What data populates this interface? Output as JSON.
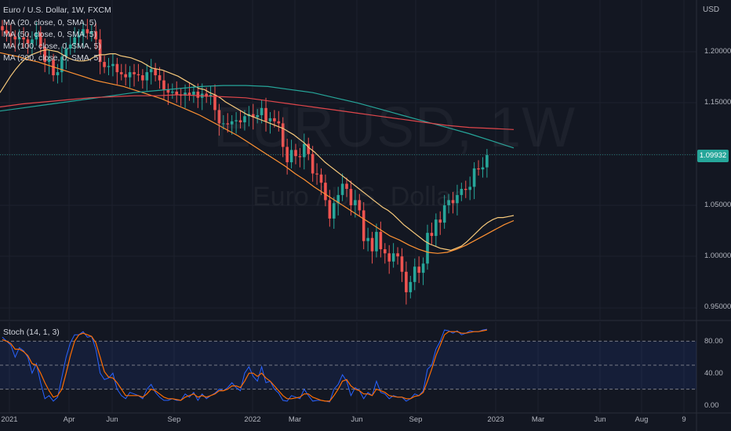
{
  "header": {
    "symbol_title": "Euro / U.S. Dollar, 1W, FXCM",
    "indicators": [
      "MA (20, close, 0, SMA, 5)",
      "MA (50, close, 0, SMA, 5)",
      "MA (100, close, 0, SMA, 5)",
      "MA (200, close, 0, SMA, 5)"
    ],
    "stoch_title": "Stoch (14, 1, 3)"
  },
  "watermark": {
    "symbol": "EURUSD, 1W",
    "description": "Euro / U.S. Dollar"
  },
  "currency": "USD",
  "last_price": "1.09932",
  "price_axis": [
    "1.20000",
    "1.15000",
    "1.10000",
    "1.05000",
    "1.00000",
    "0.95000"
  ],
  "stoch_axis": [
    "80.00",
    "40.00",
    "0.00"
  ],
  "time_axis": [
    "2021",
    "Apr",
    "Jun",
    "Sep",
    "2022",
    "Mar",
    "Jun",
    "Sep",
    "2023",
    "Mar",
    "Jun",
    "Aug",
    "9"
  ],
  "colors": {
    "background": "#131722",
    "up": "#26a69a",
    "down": "#ef5350",
    "ma20": "#f7c97b",
    "ma50": "#ff9233",
    "ma100": "#26a69a",
    "ma200": "#e0464b",
    "stoch_k": "#2962ff",
    "stoch_d": "#ff6d00"
  },
  "chart_data": {
    "type": "candlestick",
    "title": "Euro / U.S. Dollar, 1W, FXCM",
    "ylabel": "USD",
    "ylim": [
      0.935,
      1.245
    ],
    "x_labels": [
      "2021",
      "Apr",
      "Jun",
      "Sep",
      "2022",
      "Mar",
      "Jun",
      "Sep",
      "2023",
      "Mar",
      "Jun",
      "Aug",
      "9"
    ],
    "close_series": [
      1.221,
      1.218,
      1.215,
      1.212,
      1.214,
      1.212,
      1.208,
      1.212,
      1.219,
      1.205,
      1.19,
      1.192,
      1.177,
      1.18,
      1.195,
      1.203,
      1.207,
      1.214,
      1.216,
      1.222,
      1.218,
      1.22,
      1.212,
      1.19,
      1.185,
      1.186,
      1.188,
      1.18,
      1.178,
      1.175,
      1.18,
      1.178,
      1.177,
      1.172,
      1.18,
      1.183,
      1.177,
      1.172,
      1.163,
      1.16,
      1.161,
      1.158,
      1.157,
      1.16,
      1.158,
      1.161,
      1.155,
      1.159,
      1.156,
      1.158,
      1.143,
      1.13,
      1.13,
      1.129,
      1.132,
      1.133,
      1.131,
      1.137,
      1.139,
      1.136,
      1.138,
      1.145,
      1.132,
      1.135,
      1.132,
      1.13,
      1.107,
      1.092,
      1.104,
      1.098,
      1.097,
      1.11,
      1.1,
      1.081,
      1.08,
      1.072,
      1.055,
      1.037,
      1.052,
      1.06,
      1.071,
      1.066,
      1.05,
      1.055,
      1.045,
      1.015,
      1.018,
      1.005,
      1.024,
      1.007,
      1.003,
      0.995,
      1.003,
      1.0,
      0.985,
      0.965,
      0.975,
      0.99,
      0.984,
      0.993,
      1.023,
      1.02,
      1.036,
      1.033,
      1.05,
      1.055,
      1.052,
      1.06,
      1.066,
      1.065,
      1.068,
      1.086,
      1.085,
      1.087,
      1.099
    ],
    "moving_averages": [
      {
        "name": "MA (20, close, 0, SMA, 5)",
        "values": [
          1.16,
          1.168,
          1.176,
          1.183,
          1.189,
          1.194,
          1.197,
          1.199,
          1.201,
          1.202,
          1.201,
          1.2,
          1.197,
          1.194,
          1.192,
          1.191,
          1.191,
          1.192,
          1.195,
          1.197,
          1.197,
          1.198,
          1.198,
          1.196,
          1.195,
          1.194,
          1.192,
          1.19,
          1.187,
          1.184,
          1.183,
          1.182,
          1.18,
          1.178,
          1.176,
          1.173,
          1.17,
          1.167,
          1.164,
          1.163,
          1.16,
          1.158,
          1.155,
          1.151,
          1.148,
          1.145,
          1.142,
          1.139,
          1.137,
          1.135,
          1.133,
          1.131,
          1.129,
          1.127,
          1.125,
          1.122,
          1.119,
          1.115,
          1.111,
          1.106,
          1.102,
          1.097,
          1.092,
          1.088,
          1.084,
          1.08,
          1.076,
          1.072,
          1.068,
          1.064,
          1.06,
          1.056,
          1.052,
          1.048,
          1.045,
          1.041,
          1.036,
          1.031,
          1.027,
          1.023,
          1.019,
          1.015,
          1.012,
          1.01,
          1.008,
          1.007,
          1.006,
          1.008,
          1.01,
          1.014,
          1.019,
          1.024,
          1.029,
          1.033,
          1.036,
          1.038,
          1.038,
          1.039,
          1.04
        ]
      },
      {
        "name": "MA (50, close, 0, SMA, 5)",
        "values": [
          1.199,
          1.197,
          1.195,
          1.192,
          1.19,
          1.187,
          1.184,
          1.181,
          1.178,
          1.175,
          1.172,
          1.17,
          1.168,
          1.166,
          1.163,
          1.16,
          1.157,
          1.154,
          1.15,
          1.146,
          1.142,
          1.138,
          1.133,
          1.128,
          1.123,
          1.118,
          1.112,
          1.106,
          1.1,
          1.094,
          1.088,
          1.081,
          1.075,
          1.068,
          1.062,
          1.056,
          1.05,
          1.044,
          1.038,
          1.032,
          1.026,
          1.02,
          1.016,
          1.011,
          1.007,
          1.004,
          1.003,
          1.004,
          1.007,
          1.011,
          1.016,
          1.021,
          1.026,
          1.031,
          1.035
        ]
      },
      {
        "name": "MA (100, close, 0, SMA, 5)",
        "values": [
          1.142,
          1.145,
          1.148,
          1.151,
          1.154,
          1.157,
          1.16,
          1.162,
          1.164,
          1.166,
          1.167,
          1.167,
          1.166,
          1.163,
          1.16,
          1.155,
          1.15,
          1.144,
          1.138,
          1.132,
          1.126,
          1.12,
          1.113,
          1.106
        ]
      },
      {
        "name": "MA (200, close, 0, SMA, 5)",
        "values": [
          1.146,
          1.149,
          1.151,
          1.153,
          1.155,
          1.156,
          1.157,
          1.157,
          1.158,
          1.157,
          1.156,
          1.155,
          1.152,
          1.149,
          1.146,
          1.143,
          1.14,
          1.137,
          1.134,
          1.131,
          1.128,
          1.126,
          1.125,
          1.124
        ]
      }
    ],
    "stochastic": {
      "name": "Stoch (14, 1, 3)",
      "ylim": [
        0,
        100
      ],
      "bands": [
        80,
        50,
        20
      ],
      "k": [
        85,
        80,
        75,
        60,
        72,
        68,
        60,
        40,
        52,
        28,
        8,
        12,
        5,
        10,
        35,
        60,
        78,
        88,
        88,
        92,
        85,
        86,
        70,
        40,
        32,
        34,
        40,
        20,
        12,
        8,
        16,
        14,
        12,
        8,
        20,
        26,
        16,
        10,
        6,
        6,
        8,
        6,
        6,
        14,
        10,
        16,
        6,
        14,
        8,
        12,
        15,
        20,
        18,
        22,
        28,
        22,
        18,
        40,
        48,
        36,
        30,
        48,
        28,
        30,
        20,
        15,
        6,
        5,
        12,
        10,
        8,
        20,
        12,
        5,
        6,
        6,
        5,
        4,
        20,
        26,
        38,
        30,
        12,
        22,
        18,
        8,
        16,
        12,
        30,
        16,
        14,
        8,
        12,
        10,
        10,
        5,
        8,
        14,
        12,
        18,
        45,
        50,
        70,
        80,
        94,
        93,
        90,
        93,
        88,
        90,
        93,
        92,
        92,
        94,
        95
      ],
      "d": [
        82,
        80,
        77,
        70,
        70,
        67,
        62,
        52,
        50,
        40,
        28,
        18,
        10,
        12,
        20,
        40,
        62,
        80,
        88,
        90,
        88,
        86,
        78,
        60,
        42,
        35,
        34,
        28,
        20,
        12,
        12,
        12,
        12,
        10,
        14,
        20,
        18,
        14,
        10,
        8,
        8,
        7,
        6,
        10,
        12,
        14,
        10,
        12,
        10,
        12,
        14,
        18,
        18,
        20,
        24,
        24,
        22,
        30,
        40,
        40,
        36,
        40,
        34,
        30,
        24,
        18,
        12,
        8,
        8,
        9,
        10,
        14,
        14,
        10,
        8,
        6,
        5,
        5,
        12,
        20,
        30,
        32,
        24,
        20,
        18,
        14,
        14,
        12,
        20,
        18,
        16,
        12,
        11,
        10,
        10,
        8,
        8,
        11,
        12,
        16,
        30,
        45,
        62,
        75,
        88,
        92,
        92,
        92,
        90,
        90,
        91,
        92,
        92,
        93,
        94
      ]
    }
  }
}
